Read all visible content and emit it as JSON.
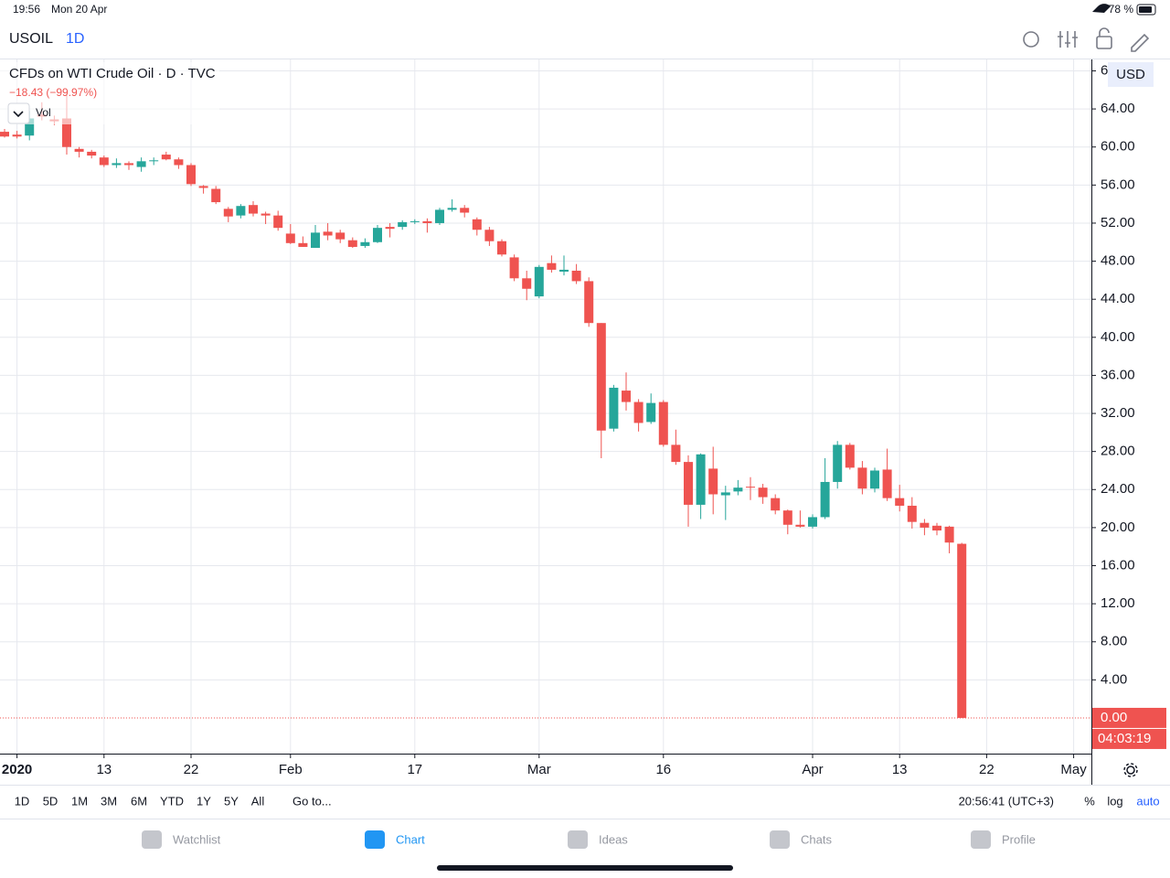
{
  "status_bar": {
    "time": "19:56",
    "date": "Mon 20 Apr",
    "battery": "78 %"
  },
  "toolbar": {
    "symbol": "USOIL",
    "interval": "1D"
  },
  "chart_data": {
    "type": "candlestick",
    "title": "CFDs on WTI Crude Oil · D · TVC",
    "subtitle": "−18.43 (−99.97%)",
    "indicator": "Vol",
    "currency": "USD",
    "categories": [
      "2019-12-31",
      "2020-01-02",
      "2020-01-03",
      "2020-01-06",
      "2020-01-07",
      "2020-01-08",
      "2020-01-09",
      "2020-01-10",
      "2020-01-13",
      "2020-01-14",
      "2020-01-15",
      "2020-01-16",
      "2020-01-17",
      "2020-01-20",
      "2020-01-21",
      "2020-01-22",
      "2020-01-23",
      "2020-01-24",
      "2020-01-27",
      "2020-01-28",
      "2020-01-29",
      "2020-01-30",
      "2020-01-31",
      "2020-02-03",
      "2020-02-04",
      "2020-02-05",
      "2020-02-06",
      "2020-02-07",
      "2020-02-10",
      "2020-02-11",
      "2020-02-12",
      "2020-02-13",
      "2020-02-14",
      "2020-02-17",
      "2020-02-18",
      "2020-02-19",
      "2020-02-20",
      "2020-02-21",
      "2020-02-24",
      "2020-02-25",
      "2020-02-26",
      "2020-02-27",
      "2020-02-28",
      "2020-03-02",
      "2020-03-03",
      "2020-03-04",
      "2020-03-05",
      "2020-03-06",
      "2020-03-09",
      "2020-03-10",
      "2020-03-11",
      "2020-03-12",
      "2020-03-13",
      "2020-03-16",
      "2020-03-17",
      "2020-03-18",
      "2020-03-19",
      "2020-03-20",
      "2020-03-23",
      "2020-03-24",
      "2020-03-25",
      "2020-03-26",
      "2020-03-27",
      "2020-03-30",
      "2020-03-31",
      "2020-04-01",
      "2020-04-02",
      "2020-04-03",
      "2020-04-06",
      "2020-04-07",
      "2020-04-08",
      "2020-04-09",
      "2020-04-13",
      "2020-04-14",
      "2020-04-15",
      "2020-04-16",
      "2020-04-17",
      "2020-04-20"
    ],
    "open": [
      61.6,
      61.3,
      61.2,
      63.4,
      62.9,
      63.0,
      59.8,
      59.5,
      58.9,
      58.1,
      58.3,
      57.9,
      58.5,
      59.2,
      58.7,
      58.1,
      55.9,
      55.6,
      53.5,
      52.8,
      53.9,
      53.0,
      52.8,
      50.9,
      49.9,
      49.4,
      51.1,
      51.0,
      50.2,
      49.6,
      50.0,
      51.6,
      51.6,
      52.1,
      52.2,
      52.0,
      53.4,
      53.6,
      52.4,
      51.3,
      50.1,
      48.4,
      46.2,
      44.3,
      47.8,
      46.9,
      47.0,
      45.9,
      41.5,
      30.4,
      34.4,
      33.2,
      31.1,
      33.2,
      28.7,
      26.9,
      22.4,
      26.2,
      23.4,
      23.8,
      24.3,
      24.2,
      23.1,
      21.8,
      20.3,
      20.1,
      21.1,
      24.8,
      28.7,
      26.3,
      24.1,
      26.1,
      23.1,
      22.3,
      20.5,
      20.2,
      20.1,
      18.3
    ],
    "high": [
      61.9,
      61.7,
      63.8,
      64.7,
      63.3,
      65.6,
      60.0,
      59.7,
      59.1,
      58.8,
      58.5,
      58.9,
      58.9,
      59.5,
      58.9,
      58.3,
      56.0,
      55.9,
      53.7,
      54.0,
      54.3,
      53.2,
      53.3,
      51.9,
      50.6,
      51.8,
      52.0,
      51.3,
      50.5,
      50.4,
      51.8,
      52.0,
      52.3,
      52.4,
      52.5,
      53.6,
      54.5,
      53.9,
      52.6,
      51.6,
      50.3,
      48.7,
      47.0,
      47.6,
      48.6,
      48.6,
      47.7,
      46.3,
      41.5,
      35.0,
      36.3,
      33.5,
      34.1,
      33.4,
      30.3,
      27.6,
      27.8,
      28.5,
      24.4,
      25.0,
      25.3,
      24.6,
      23.5,
      21.9,
      21.8,
      21.4,
      27.3,
      29.1,
      28.9,
      27.0,
      26.3,
      28.3,
      24.5,
      23.2,
      20.9,
      20.5,
      20.2,
      18.4
    ],
    "low": [
      61.0,
      60.9,
      60.7,
      62.8,
      62.3,
      59.2,
      58.9,
      58.8,
      57.9,
      57.8,
      57.6,
      57.4,
      58.1,
      58.6,
      57.7,
      55.9,
      55.1,
      54.0,
      52.1,
      52.5,
      52.7,
      51.9,
      51.2,
      49.8,
      49.5,
      49.4,
      50.2,
      49.9,
      49.4,
      49.4,
      49.9,
      50.5,
      51.3,
      51.9,
      51.0,
      51.8,
      53.2,
      52.6,
      50.7,
      49.6,
      48.5,
      45.9,
      43.9,
      44.1,
      46.8,
      46.5,
      45.6,
      41.1,
      27.3,
      30.1,
      32.3,
      30.1,
      30.9,
      28.5,
      26.6,
      20.1,
      20.9,
      21.4,
      20.8,
      23.4,
      22.9,
      22.5,
      21.4,
      19.3,
      20.0,
      19.9,
      20.9,
      24.1,
      26.1,
      23.5,
      23.7,
      22.8,
      21.7,
      19.9,
      19.2,
      19.2,
      17.3,
      0.004
    ],
    "close": [
      61.1,
      61.1,
      63.0,
      63.2,
      62.7,
      60.0,
      59.5,
      59.1,
      58.1,
      58.3,
      58.1,
      58.5,
      58.6,
      58.7,
      58.1,
      56.1,
      55.7,
      54.2,
      52.7,
      53.8,
      53.0,
      52.8,
      51.5,
      49.9,
      49.5,
      51.0,
      50.7,
      50.3,
      49.5,
      50.0,
      51.5,
      51.4,
      52.1,
      52.2,
      52.0,
      53.4,
      53.6,
      53.1,
      51.3,
      50.1,
      48.7,
      46.2,
      45.1,
      47.4,
      47.1,
      47.1,
      45.9,
      41.5,
      30.2,
      34.7,
      33.2,
      31.0,
      33.1,
      28.7,
      26.9,
      22.4,
      27.7,
      23.5,
      23.7,
      24.2,
      24.2,
      23.2,
      21.8,
      20.3,
      20.1,
      21.1,
      24.8,
      28.7,
      26.3,
      24.1,
      26.0,
      23.1,
      22.3,
      20.6,
      20.0,
      19.7,
      18.43,
      0.004
    ],
    "up_color": "#26a69a",
    "down_color": "#ef5350",
    "ylim": [
      -3.75,
      69.2
    ],
    "yticks": [
      {
        "value": 4,
        "label": "4.00"
      },
      {
        "value": 8,
        "label": "8.00"
      },
      {
        "value": 12,
        "label": "12.00"
      },
      {
        "value": 16,
        "label": "16.00"
      },
      {
        "value": 20,
        "label": "20.00"
      },
      {
        "value": 24,
        "label": "24.00"
      },
      {
        "value": 28,
        "label": "28.00"
      },
      {
        "value": 32,
        "label": "32.00"
      },
      {
        "value": 36,
        "label": "36.00"
      },
      {
        "value": 40,
        "label": "40.00"
      },
      {
        "value": 44,
        "label": "44.00"
      },
      {
        "value": 48,
        "label": "48.00"
      },
      {
        "value": 52,
        "label": "52.00"
      },
      {
        "value": 56,
        "label": "56.00"
      },
      {
        "value": 60,
        "label": "60.00"
      },
      {
        "value": 64,
        "label": "64.00"
      },
      {
        "value": 68,
        "label": "68.00"
      }
    ],
    "xticks": [
      {
        "value": "2020-01-02",
        "label": "2020"
      },
      {
        "value": "2020-01-13",
        "label": "13"
      },
      {
        "value": "2020-01-22",
        "label": "22"
      },
      {
        "value": "2020-02-03",
        "label": "Feb"
      },
      {
        "value": "2020-02-17",
        "label": "17"
      },
      {
        "value": "2020-03-02",
        "label": "Mar"
      },
      {
        "value": "2020-03-16",
        "label": "16"
      },
      {
        "value": "2020-04-01",
        "label": "Apr"
      },
      {
        "value": "2020-04-13",
        "label": "13"
      },
      {
        "value": "2020-04-22",
        "label": "22"
      },
      {
        "value": "2020-05-01",
        "label": "May"
      }
    ],
    "last_price": {
      "value": 0.004,
      "label": "0.00"
    },
    "countdown": "04:03:19",
    "grid": true
  },
  "range_bar": {
    "ranges": [
      "1D",
      "5D",
      "1M",
      "3M",
      "6M",
      "YTD",
      "1Y",
      "5Y",
      "All"
    ],
    "goto": "Go to...",
    "clock": "20:56:41 (UTC+3)",
    "options": [
      "%",
      "log",
      "auto"
    ]
  },
  "tab_bar": {
    "tabs": [
      "Watchlist",
      "Chart",
      "Ideas",
      "Chats",
      "Profile"
    ]
  }
}
